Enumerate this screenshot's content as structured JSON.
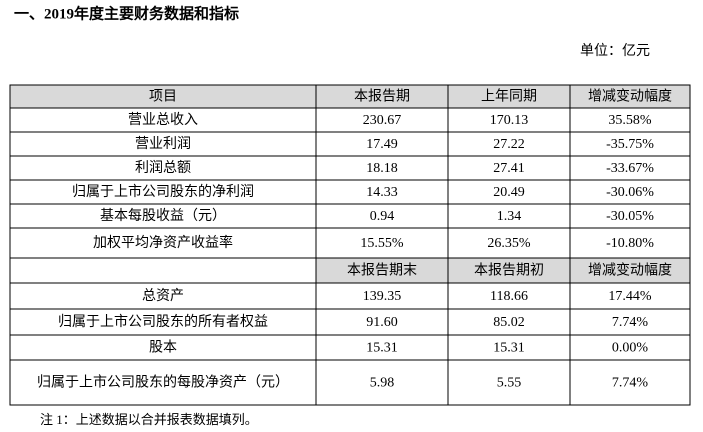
{
  "title": "一、2019年度主要财务数据和指标",
  "unit": "单位：亿元",
  "table": {
    "header": [
      "项目",
      "本报告期",
      "上年同期",
      "增减变动幅度"
    ],
    "rows": [
      [
        "营业总收入",
        "230.67",
        "170.13",
        "35.58%"
      ],
      [
        "营业利润",
        "17.49",
        "27.22",
        "-35.75%"
      ],
      [
        "利润总额",
        "18.18",
        "27.41",
        "-33.67%"
      ],
      [
        "归属于上市公司股东的净利润",
        "14.33",
        "20.49",
        "-30.06%"
      ],
      [
        "基本每股收益（元）",
        "0.94",
        "1.34",
        "-30.05%"
      ],
      [
        "加权平均净资产收益率",
        "15.55%",
        "26.35%",
        "-10.80%"
      ]
    ],
    "subheader": [
      "本报告期末",
      "本报告期初",
      "增减变动幅度"
    ],
    "rows2": [
      [
        "总资产",
        "139.35",
        "118.66",
        "17.44%"
      ],
      [
        "归属于上市公司股东的所有者权益",
        "91.60",
        "85.02",
        "7.74%"
      ],
      [
        "股本",
        "15.31",
        "15.31",
        "0.00%"
      ],
      [
        "归属于上市公司股东的每股净资产（元）",
        "5.98",
        "5.55",
        "7.74%"
      ]
    ]
  },
  "note": "注 1：上述数据以合并报表数据填列。"
}
